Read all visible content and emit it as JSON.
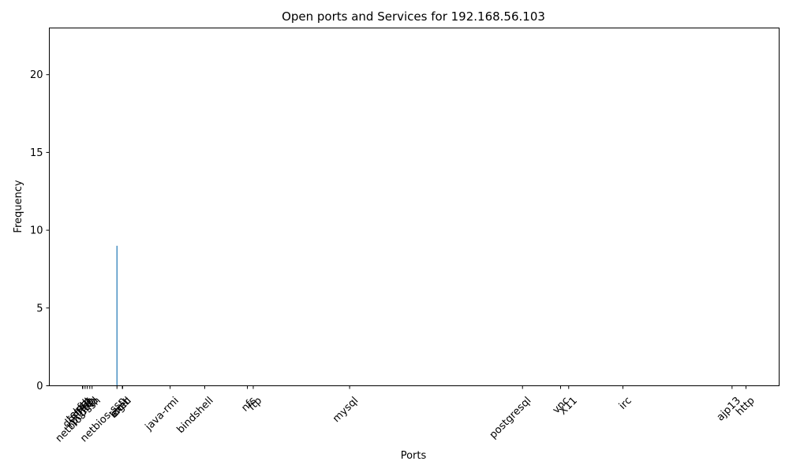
{
  "chart_data": {
    "type": "bar",
    "title": "Open ports and Services for 192.168.56.103",
    "xlabel": "Ports",
    "ylabel": "Frequency",
    "ylim": [
      0,
      23
    ],
    "y_ticks": [
      0,
      5,
      10,
      15,
      20
    ],
    "grid": false,
    "legend": "none",
    "bar_color": "#1f77b4",
    "x_tick_labels": [
      "ftp",
      "ssh",
      "telnet",
      "smtp",
      "domain",
      "http",
      "rpcbind",
      "netbios-ssn",
      "exec",
      "login",
      "shell",
      "netbios-ssn",
      "java-rmi",
      "bindshell",
      "nfs",
      "ftp",
      "mysql",
      "postgresql",
      "vnc",
      "X11",
      "irc",
      "ajp13",
      "http"
    ],
    "series": [
      {
        "ports": [
          21,
          22,
          23,
          25,
          53,
          80,
          111,
          139,
          512,
          513,
          514,
          445,
          1099,
          1524,
          2049,
          2121,
          3306,
          5432,
          5900,
          6000,
          6667,
          8009,
          8180
        ],
        "values": [
          0,
          0,
          0,
          0,
          0,
          0,
          0,
          0,
          0,
          0,
          0,
          9,
          0,
          0,
          0,
          0,
          0,
          0,
          0,
          0,
          0,
          0,
          0
        ]
      }
    ]
  }
}
